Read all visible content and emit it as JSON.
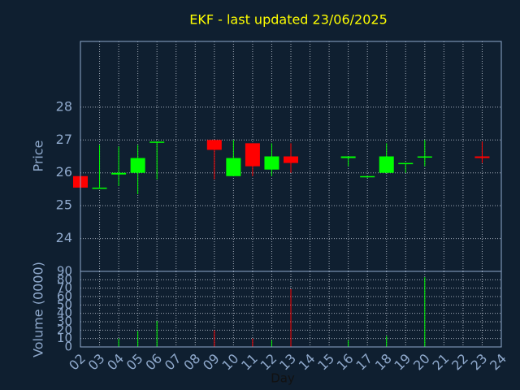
{
  "chart_data": {
    "type": "candlestick",
    "title": "EKF - last updated 23/06/2025",
    "xlabel": "Day",
    "ylabel": "Price",
    "up_color": "#00ff00",
    "down_color": "#ff0000",
    "grid": true,
    "x": [
      2,
      3,
      4,
      5,
      6,
      9,
      10,
      11,
      12,
      13,
      16,
      17,
      18,
      19,
      20,
      23
    ],
    "open": [
      25.9,
      25.55,
      25.95,
      26.0,
      26.95,
      27.0,
      25.9,
      26.9,
      26.1,
      26.5,
      26.45,
      25.9,
      26.0,
      26.3,
      26.5,
      26.5
    ],
    "high": [
      25.9,
      26.85,
      26.8,
      26.85,
      26.95,
      27.0,
      27.0,
      26.9,
      26.9,
      26.9,
      26.5,
      25.9,
      26.9,
      26.3,
      27.0,
      26.95
    ],
    "low": [
      25.55,
      25.55,
      25.6,
      25.35,
      25.8,
      25.8,
      25.9,
      25.9,
      25.9,
      26.0,
      26.2,
      25.85,
      26.0,
      26.0,
      26.2,
      26.3
    ],
    "close": [
      25.55,
      25.55,
      26.0,
      26.45,
      26.95,
      26.7,
      26.45,
      26.2,
      26.5,
      26.3,
      26.5,
      25.9,
      26.5,
      26.3,
      26.5,
      26.45
    ],
    "xlim": [
      2,
      24
    ],
    "xticks": [
      {
        "value": 2,
        "label": "02"
      },
      {
        "value": 3,
        "label": "03"
      },
      {
        "value": 4,
        "label": "04"
      },
      {
        "value": 5,
        "label": "05"
      },
      {
        "value": 6,
        "label": "06"
      },
      {
        "value": 7,
        "label": "07"
      },
      {
        "value": 8,
        "label": "08"
      },
      {
        "value": 9,
        "label": "09"
      },
      {
        "value": 10,
        "label": "10"
      },
      {
        "value": 11,
        "label": "11"
      },
      {
        "value": 12,
        "label": "12"
      },
      {
        "value": 13,
        "label": "13"
      },
      {
        "value": 14,
        "label": "14"
      },
      {
        "value": 15,
        "label": "15"
      },
      {
        "value": 16,
        "label": "16"
      },
      {
        "value": 17,
        "label": "17"
      },
      {
        "value": 18,
        "label": "18"
      },
      {
        "value": 19,
        "label": "19"
      },
      {
        "value": 20,
        "label": "20"
      },
      {
        "value": 21,
        "label": "21"
      },
      {
        "value": 22,
        "label": "22"
      },
      {
        "value": 23,
        "label": "23"
      },
      {
        "value": 24,
        "label": "24"
      }
    ],
    "ylim": [
      23,
      30
    ],
    "yticks": [
      24,
      25,
      26,
      27,
      28
    ],
    "volume": {
      "ylabel": "Volume (0000)",
      "values": [
        0,
        0,
        10,
        19,
        31,
        20,
        0,
        10,
        8,
        69,
        8,
        0,
        13,
        0,
        83,
        0
      ],
      "ylim": [
        0,
        90
      ],
      "yticks": [
        0,
        10,
        20,
        30,
        40,
        50,
        60,
        70,
        80,
        90
      ]
    }
  }
}
